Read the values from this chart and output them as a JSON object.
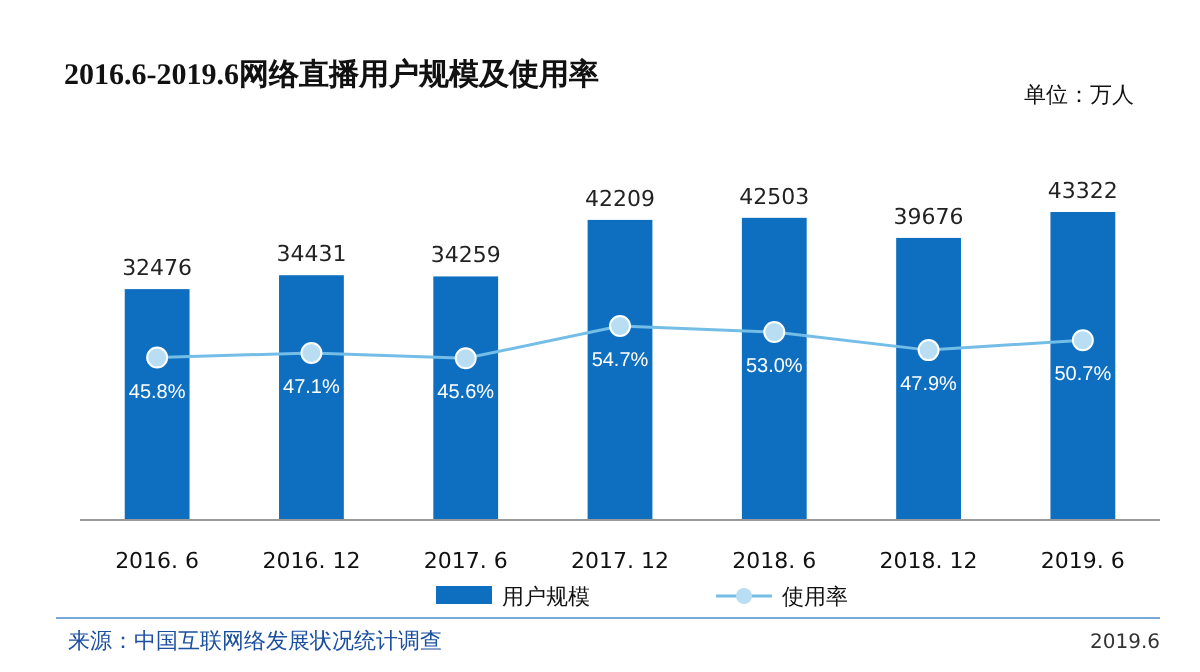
{
  "chart_data": {
    "type": "bar",
    "title": "2016.6-2019.6网络直播用户规模及使用率",
    "categories": [
      "2016. 6",
      "2016. 12",
      "2017. 6",
      "2017. 12",
      "2018. 6",
      "2018. 12",
      "2019. 6"
    ],
    "series": [
      {
        "name": "用户规模",
        "color": "#0e6fc0",
        "values": [
          32476,
          34431,
          34259,
          42209,
          42503,
          39676,
          43322
        ]
      },
      {
        "name": "使用率",
        "type": "line",
        "axis": "y2",
        "color": "#74bde6",
        "values": [
          45.8,
          47.1,
          45.6,
          54.7,
          53.0,
          47.9,
          50.7
        ],
        "value_labels": [
          "45.8%",
          "47.1%",
          "45.6%",
          "54.7%",
          "53.0%",
          "47.9%",
          "50.7%"
        ]
      }
    ],
    "data_labels": true,
    "legend": "bottom",
    "marker": "circle",
    "grid": false,
    "annotations": [
      "单位：万人",
      "来源：中国互联网络发展状况统计调查",
      "2019.6"
    ]
  }
}
